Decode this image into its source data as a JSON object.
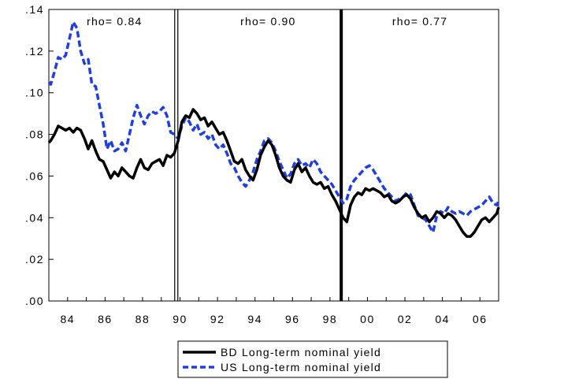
{
  "chart_data": {
    "type": "line",
    "title": "",
    "xlabel": "",
    "ylabel": "",
    "ylim": [
      0.0,
      0.14
    ],
    "xlim": [
      1983.0,
      2007.0
    ],
    "y_ticks": [
      0.0,
      0.02,
      0.04,
      0.06,
      0.08,
      0.1,
      0.12,
      0.14
    ],
    "y_tick_labels": [
      ".00",
      ".02",
      ".04",
      ".06",
      ".08",
      ".10",
      ".12",
      ".14"
    ],
    "x_ticks": [
      1984,
      1986,
      1988,
      1990,
      1992,
      1994,
      1996,
      1998,
      2000,
      2002,
      2004,
      2006
    ],
    "x_tick_labels": [
      "84",
      "86",
      "88",
      "90",
      "92",
      "94",
      "96",
      "98",
      "00",
      "02",
      "04",
      "06"
    ],
    "grid": false,
    "legend_position": "bottom-center",
    "vertical_lines": [
      {
        "x": 1989.8,
        "style": "double"
      },
      {
        "x": 1998.6,
        "style": "thick"
      }
    ],
    "annotations": [
      {
        "text": "rho= 0.84",
        "x": 1986.5
      },
      {
        "text": "rho= 0.90",
        "x": 1994.7
      },
      {
        "text": "rho= 0.77",
        "x": 2002.8
      }
    ],
    "series": [
      {
        "name": "BD Long-term nominal yield",
        "color": "#000000",
        "style": "solid",
        "x": [
          1983.0,
          1983.1,
          1983.3,
          1983.5,
          1983.7,
          1983.9,
          1984.1,
          1984.3,
          1984.5,
          1984.7,
          1984.9,
          1985.1,
          1985.3,
          1985.5,
          1985.7,
          1985.9,
          1986.1,
          1986.3,
          1986.5,
          1986.7,
          1986.9,
          1987.1,
          1987.3,
          1987.5,
          1987.7,
          1987.9,
          1988.1,
          1988.3,
          1988.5,
          1988.7,
          1988.9,
          1989.1,
          1989.3,
          1989.5,
          1989.7,
          1989.9,
          1990.1,
          1990.3,
          1990.5,
          1990.7,
          1990.9,
          1991.1,
          1991.3,
          1991.5,
          1991.7,
          1991.9,
          1992.1,
          1992.3,
          1992.5,
          1992.7,
          1992.9,
          1993.1,
          1993.3,
          1993.5,
          1993.7,
          1993.9,
          1994.1,
          1994.3,
          1994.5,
          1994.7,
          1994.9,
          1995.1,
          1995.3,
          1995.5,
          1995.7,
          1995.9,
          1996.1,
          1996.3,
          1996.5,
          1996.7,
          1996.9,
          1997.1,
          1997.3,
          1997.5,
          1997.7,
          1997.9,
          1998.1,
          1998.3,
          1998.5,
          1998.7,
          1998.9,
          1999.1,
          1999.3,
          1999.5,
          1999.7,
          1999.9,
          2000.1,
          2000.3,
          2000.5,
          2000.7,
          2000.9,
          2001.1,
          2001.3,
          2001.5,
          2001.7,
          2001.9,
          2002.1,
          2002.3,
          2002.5,
          2002.7,
          2002.9,
          2003.1,
          2003.3,
          2003.5,
          2003.7,
          2003.9,
          2004.1,
          2004.3,
          2004.5,
          2004.7,
          2004.9,
          2005.1,
          2005.3,
          2005.5,
          2005.7,
          2005.9,
          2006.1,
          2006.3,
          2006.5,
          2006.7,
          2006.9,
          2007.0
        ],
        "y": [
          0.076,
          0.077,
          0.08,
          0.084,
          0.083,
          0.082,
          0.083,
          0.081,
          0.083,
          0.082,
          0.078,
          0.073,
          0.077,
          0.072,
          0.068,
          0.067,
          0.063,
          0.059,
          0.062,
          0.06,
          0.064,
          0.062,
          0.06,
          0.059,
          0.064,
          0.068,
          0.064,
          0.063,
          0.066,
          0.067,
          0.068,
          0.065,
          0.07,
          0.069,
          0.071,
          0.077,
          0.086,
          0.089,
          0.088,
          0.092,
          0.09,
          0.087,
          0.088,
          0.084,
          0.086,
          0.083,
          0.08,
          0.081,
          0.077,
          0.072,
          0.067,
          0.066,
          0.068,
          0.063,
          0.06,
          0.058,
          0.063,
          0.07,
          0.074,
          0.077,
          0.075,
          0.07,
          0.064,
          0.06,
          0.058,
          0.057,
          0.063,
          0.066,
          0.062,
          0.064,
          0.06,
          0.057,
          0.056,
          0.057,
          0.054,
          0.055,
          0.051,
          0.048,
          0.044,
          0.04,
          0.038,
          0.046,
          0.05,
          0.052,
          0.051,
          0.054,
          0.053,
          0.054,
          0.053,
          0.052,
          0.05,
          0.051,
          0.048,
          0.047,
          0.048,
          0.05,
          0.051,
          0.049,
          0.045,
          0.042,
          0.04,
          0.041,
          0.038,
          0.04,
          0.043,
          0.042,
          0.04,
          0.042,
          0.041,
          0.039,
          0.036,
          0.033,
          0.031,
          0.031,
          0.033,
          0.036,
          0.039,
          0.04,
          0.038,
          0.04,
          0.042,
          0.045
        ]
      },
      {
        "name": "US Long-term nominal yield",
        "color": "#1f3fe0",
        "style": "dashed",
        "x": [
          1983.0,
          1983.1,
          1983.3,
          1983.5,
          1983.7,
          1983.9,
          1984.1,
          1984.3,
          1984.5,
          1984.7,
          1984.9,
          1985.1,
          1985.3,
          1985.5,
          1985.7,
          1985.9,
          1986.1,
          1986.3,
          1986.5,
          1986.7,
          1986.9,
          1987.1,
          1987.3,
          1987.5,
          1987.7,
          1987.9,
          1988.1,
          1988.3,
          1988.5,
          1988.7,
          1988.9,
          1989.1,
          1989.3,
          1989.5,
          1989.7,
          1989.9,
          1990.1,
          1990.3,
          1990.5,
          1990.7,
          1990.9,
          1991.1,
          1991.3,
          1991.5,
          1991.7,
          1991.9,
          1992.1,
          1992.3,
          1992.5,
          1992.7,
          1992.9,
          1993.1,
          1993.3,
          1993.5,
          1993.7,
          1993.9,
          1994.1,
          1994.3,
          1994.5,
          1994.7,
          1994.9,
          1995.1,
          1995.3,
          1995.5,
          1995.7,
          1995.9,
          1996.1,
          1996.3,
          1996.5,
          1996.7,
          1996.9,
          1997.1,
          1997.3,
          1997.5,
          1997.7,
          1997.9,
          1998.1,
          1998.3,
          1998.5,
          1998.7,
          1998.9,
          1999.1,
          1999.3,
          1999.5,
          1999.7,
          1999.9,
          2000.1,
          2000.3,
          2000.5,
          2000.7,
          2000.9,
          2001.1,
          2001.3,
          2001.5,
          2001.7,
          2001.9,
          2002.1,
          2002.3,
          2002.5,
          2002.7,
          2002.9,
          2003.1,
          2003.3,
          2003.5,
          2003.7,
          2003.9,
          2004.1,
          2004.3,
          2004.5,
          2004.7,
          2004.9,
          2005.1,
          2005.3,
          2005.5,
          2005.7,
          2005.9,
          2006.1,
          2006.3,
          2006.5,
          2006.7,
          2006.9,
          2007.0
        ],
        "y": [
          0.105,
          0.104,
          0.11,
          0.117,
          0.116,
          0.118,
          0.126,
          0.134,
          0.131,
          0.12,
          0.114,
          0.116,
          0.104,
          0.103,
          0.094,
          0.085,
          0.073,
          0.077,
          0.072,
          0.073,
          0.076,
          0.072,
          0.08,
          0.088,
          0.094,
          0.089,
          0.085,
          0.089,
          0.091,
          0.09,
          0.091,
          0.093,
          0.089,
          0.081,
          0.08,
          0.078,
          0.084,
          0.088,
          0.086,
          0.082,
          0.085,
          0.08,
          0.081,
          0.078,
          0.08,
          0.075,
          0.073,
          0.075,
          0.071,
          0.066,
          0.064,
          0.06,
          0.057,
          0.055,
          0.058,
          0.062,
          0.068,
          0.072,
          0.077,
          0.078,
          0.076,
          0.072,
          0.067,
          0.063,
          0.059,
          0.061,
          0.066,
          0.068,
          0.065,
          0.066,
          0.064,
          0.068,
          0.066,
          0.062,
          0.06,
          0.058,
          0.056,
          0.053,
          0.05,
          0.047,
          0.049,
          0.055,
          0.058,
          0.06,
          0.062,
          0.064,
          0.065,
          0.063,
          0.06,
          0.057,
          0.054,
          0.052,
          0.05,
          0.048,
          0.049,
          0.05,
          0.052,
          0.051,
          0.046,
          0.041,
          0.04,
          0.039,
          0.036,
          0.033,
          0.041,
          0.043,
          0.042,
          0.045,
          0.043,
          0.042,
          0.043,
          0.042,
          0.041,
          0.043,
          0.044,
          0.045,
          0.046,
          0.048,
          0.05,
          0.047,
          0.046,
          0.048
        ]
      }
    ]
  }
}
